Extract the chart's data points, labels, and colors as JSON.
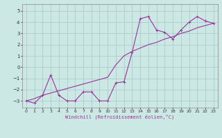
{
  "xlabel": "Windchill (Refroidissement éolien,°C)",
  "bg_color": "#cce8e4",
  "grid_color": "#aacccc",
  "line_color": "#993399",
  "xlim": [
    -0.5,
    23.5
  ],
  "ylim": [
    -3.6,
    5.6
  ],
  "xticks": [
    0,
    1,
    2,
    3,
    4,
    5,
    6,
    7,
    8,
    9,
    10,
    11,
    12,
    13,
    14,
    15,
    16,
    17,
    18,
    19,
    20,
    21,
    22,
    23
  ],
  "yticks": [
    -3,
    -2,
    -1,
    0,
    1,
    2,
    3,
    4,
    5
  ],
  "series1_x": [
    0,
    1,
    2,
    3,
    4,
    5,
    6,
    7,
    8,
    9,
    10,
    11,
    12,
    13,
    14,
    15,
    16,
    17,
    18,
    19,
    20,
    21,
    22,
    23
  ],
  "series1_y": [
    -3.0,
    -3.2,
    -2.5,
    -0.7,
    -2.5,
    -3.0,
    -3.0,
    -2.2,
    -2.2,
    -3.0,
    -3.0,
    -1.4,
    -1.3,
    1.3,
    4.3,
    4.5,
    3.3,
    3.1,
    2.5,
    3.3,
    4.0,
    4.5,
    4.1,
    3.9
  ],
  "series2_x": [
    0,
    1,
    2,
    3,
    4,
    5,
    6,
    7,
    8,
    9,
    10,
    11,
    12,
    13,
    14,
    15,
    16,
    17,
    18,
    19,
    20,
    21,
    22,
    23
  ],
  "series2_y": [
    -3.0,
    -2.8,
    -2.5,
    -2.3,
    -2.1,
    -1.9,
    -1.7,
    -1.5,
    -1.3,
    -1.1,
    -0.9,
    0.2,
    1.0,
    1.4,
    1.7,
    2.0,
    2.2,
    2.5,
    2.7,
    3.0,
    3.2,
    3.5,
    3.7,
    3.9
  ]
}
